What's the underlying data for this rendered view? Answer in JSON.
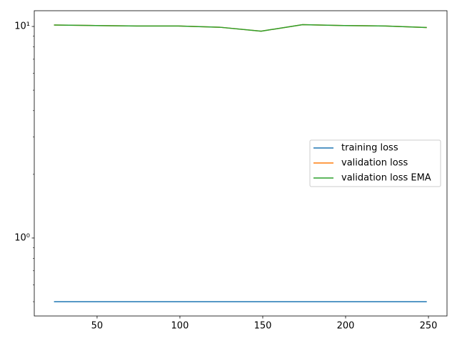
{
  "chart_data": {
    "type": "line",
    "x": [
      24,
      49,
      74,
      99,
      124,
      149,
      174,
      199,
      224,
      249
    ],
    "series": [
      {
        "name": "training loss",
        "color": "#1f77b4",
        "values": [
          0.5,
          0.5,
          0.5,
          0.5,
          0.5,
          0.5,
          0.5,
          0.5,
          0.5,
          0.5
        ]
      },
      {
        "name": "validation loss",
        "color": "#ff7f0e",
        "values": [
          10.16,
          10.1,
          10.05,
          10.05,
          9.92,
          9.5,
          10.2,
          10.1,
          10.05,
          9.89
        ]
      },
      {
        "name": "validation loss EMA",
        "color": "#2ca02c",
        "values": [
          10.16,
          10.1,
          10.05,
          10.05,
          9.92,
          9.5,
          10.2,
          10.1,
          10.05,
          9.89
        ]
      }
    ],
    "xlim": [
      12.1,
      261.2
    ],
    "xticks": [
      50,
      100,
      150,
      200,
      250
    ],
    "ylim": [
      0.428,
      11.87
    ],
    "ylog": true,
    "yticks": [
      {
        "value": 1,
        "label": "10⁰"
      },
      {
        "value": 10,
        "label": "10¹"
      }
    ],
    "yminorticks": [
      0.5,
      0.6,
      0.7,
      0.8,
      0.9,
      2,
      3,
      4,
      5,
      6,
      7,
      8,
      9
    ],
    "legend": "center right"
  }
}
